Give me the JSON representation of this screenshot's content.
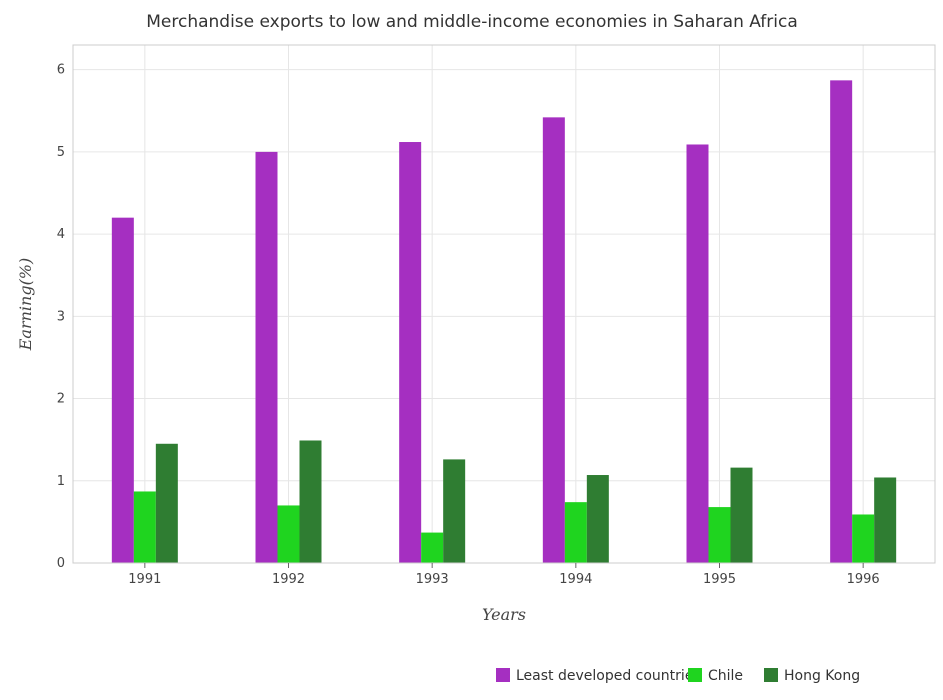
{
  "chart_data": {
    "type": "bar",
    "title": "Merchandise exports to low and middle-income economies in Saharan Africa",
    "xlabel": "Years",
    "ylabel": "Earning(%)",
    "categories": [
      "1991",
      "1992",
      "1993",
      "1994",
      "1995",
      "1996"
    ],
    "ylim": [
      0,
      6.3
    ],
    "yticks": [
      "0",
      "1",
      "2",
      "3",
      "4",
      "5",
      "6"
    ],
    "grid": true,
    "legend_position": "bottom-right",
    "series": [
      {
        "name": "Least developed countries",
        "color": "#a52fc1",
        "values": [
          4.2,
          5.0,
          5.12,
          5.42,
          5.09,
          5.87
        ]
      },
      {
        "name": "Chile",
        "color": "#1fd41f",
        "values": [
          0.87,
          0.7,
          0.37,
          0.74,
          0.68,
          0.59
        ]
      },
      {
        "name": "Hong Kong",
        "color": "#2f7d32",
        "values": [
          1.45,
          1.49,
          1.26,
          1.07,
          1.16,
          1.04
        ]
      }
    ]
  }
}
